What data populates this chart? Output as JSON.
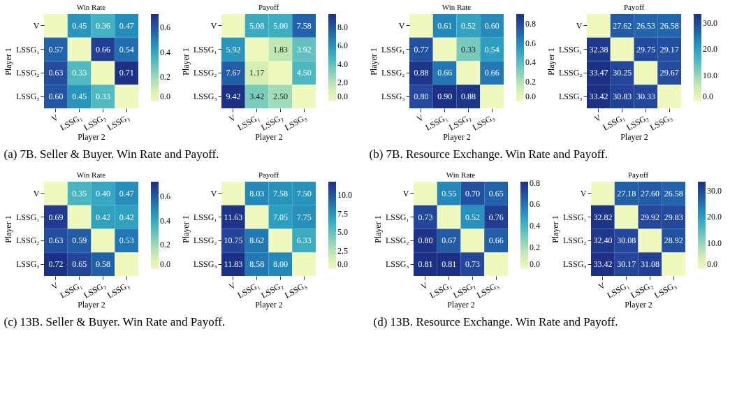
{
  "chart_data": [
    {
      "type": "heatmap",
      "title": "Win Rate",
      "xlabel": "Player 2",
      "ylabel": "Player 1",
      "categories": [
        "V",
        "LSSG₁",
        "LSSG₂",
        "LSSG₃"
      ],
      "y_categories": [
        "V",
        "LSSG₁",
        "LSSG₂",
        "LSSG₃"
      ],
      "cells": [
        [
          0,
          0.45,
          0.36,
          0.47
        ],
        [
          0.57,
          0,
          0.66,
          0.54
        ],
        [
          0.63,
          0.33,
          0,
          0.71
        ],
        [
          0.6,
          0.45,
          0.33,
          0
        ]
      ],
      "cell_labels": [
        [
          null,
          "0.45",
          "0.36",
          "0.47"
        ],
        [
          "0.57",
          null,
          "0.66",
          "0.54"
        ],
        [
          "0.63",
          "0.33",
          null,
          "0.71"
        ],
        [
          "0.60",
          "0.45",
          "0.33",
          null
        ]
      ],
      "clim": [
        0,
        0.71
      ],
      "cticks": [
        {
          "value": 0,
          "label": "0.0"
        },
        0.2,
        0.4,
        0.6
      ],
      "annotations": [
        "(a) 7B. Seller & Buyer. Win Rate and Payoff."
      ]
    },
    {
      "type": "heatmap",
      "title": "Payoff",
      "xlabel": "Player 2",
      "ylabel": "Player 1",
      "categories": [
        "V",
        "LSSG₁",
        "LSSG₂",
        "LSSG₃"
      ],
      "y_categories": [
        "V",
        "LSSG₁",
        "LSSG₂",
        "LSSG₃"
      ],
      "cells": [
        [
          0,
          5.08,
          5.0,
          7.58
        ],
        [
          5.92,
          0,
          1.83,
          3.92
        ],
        [
          7.67,
          1.17,
          0,
          4.5
        ],
        [
          9.42,
          3.42,
          2.5,
          0
        ]
      ],
      "cell_labels": [
        [
          null,
          "5.08",
          "5.00",
          "7.58"
        ],
        [
          "5.92",
          null,
          "1.83",
          "3.92"
        ],
        [
          "7.67",
          "1.17",
          null,
          "4.50"
        ],
        [
          "9.42",
          "3.42",
          "2.50",
          null
        ]
      ],
      "clim": [
        0,
        9.42
      ],
      "cticks": [
        {
          "value": 0,
          "label": "0.0"
        },
        {
          "value": 2,
          "label": "2.0"
        },
        {
          "value": 4,
          "label": "4.0"
        },
        {
          "value": 6,
          "label": "6.0"
        },
        {
          "value": 8,
          "label": "8.0"
        }
      ]
    },
    {
      "type": "heatmap",
      "title": "Win Rate",
      "xlabel": "Player 2",
      "ylabel": "Player 1",
      "categories": [
        "V",
        "LSSG₁",
        "LSSG₂",
        "LSSG₃"
      ],
      "y_categories": [
        "V",
        "LSSG₁",
        "LSSG₂",
        "LSSG₃"
      ],
      "cells": [
        [
          0,
          0.61,
          0.52,
          0.6
        ],
        [
          0.77,
          0,
          0.33,
          0.54
        ],
        [
          0.88,
          0.66,
          0,
          0.66
        ],
        [
          0.8,
          0.9,
          0.88,
          0
        ]
      ],
      "cell_labels": [
        [
          null,
          "0.61",
          "0.52",
          "0.60"
        ],
        [
          "0.77",
          null,
          "0.33",
          "0.54"
        ],
        [
          "0.88",
          "0.66",
          null,
          "0.66"
        ],
        [
          "0.80",
          "0.90",
          "0.88",
          null
        ]
      ],
      "clim": [
        0,
        0.9
      ],
      "cticks": [
        {
          "value": 0,
          "label": "0.0"
        },
        0.2,
        0.4,
        0.6,
        0.8
      ],
      "annotations": [
        "(b) 7B. Resource Exchange. Win Rate and Payoff."
      ]
    },
    {
      "type": "heatmap",
      "title": "Payoff",
      "xlabel": "Player 2",
      "ylabel": "Player 1",
      "categories": [
        "V",
        "LSSG₁",
        "LSSG₂",
        "LSSG₃"
      ],
      "y_categories": [
        "V",
        "LSSG₁",
        "LSSG₂",
        "LSSG₃"
      ],
      "cells": [
        [
          0,
          27.62,
          26.53,
          26.58
        ],
        [
          32.38,
          0,
          29.75,
          29.17
        ],
        [
          33.47,
          30.25,
          0,
          29.67
        ],
        [
          33.42,
          30.83,
          30.33,
          0
        ]
      ],
      "cell_labels": [
        [
          null,
          "27.62",
          "26.53",
          "26.58"
        ],
        [
          "32.38",
          null,
          "29.75",
          "29.17"
        ],
        [
          "33.47",
          "30.25",
          null,
          "29.67"
        ],
        [
          "33.42",
          "30.83",
          "30.33",
          null
        ]
      ],
      "clim": [
        0,
        33.47
      ],
      "cticks": [
        {
          "value": 0,
          "label": "0.0"
        },
        {
          "value": 10,
          "label": "10.0"
        },
        {
          "value": 20,
          "label": "20.0"
        },
        {
          "value": 30,
          "label": "30.0"
        }
      ]
    },
    {
      "type": "heatmap",
      "title": "Win Rate",
      "xlabel": "Player 2",
      "ylabel": "Player 1",
      "categories": [
        "V",
        "LSSG₁",
        "LSSG₂",
        "LSSG₃"
      ],
      "y_categories": [
        "V",
        "LSSG₁",
        "LSSG₂",
        "LSSG₃"
      ],
      "cells": [
        [
          0,
          0.35,
          0.4,
          0.47
        ],
        [
          0.69,
          0,
          0.42,
          0.42
        ],
        [
          0.63,
          0.59,
          0,
          0.53
        ],
        [
          0.72,
          0.65,
          0.58,
          0
        ]
      ],
      "cell_labels": [
        [
          null,
          "0.35",
          "0.40",
          "0.47"
        ],
        [
          "0.69",
          null,
          "0.42",
          "0.42"
        ],
        [
          "0.63",
          "0.59",
          null,
          "0.53"
        ],
        [
          "0.72",
          "0.65",
          "0.58",
          null
        ]
      ],
      "clim": [
        0,
        0.72
      ],
      "cticks": [
        {
          "value": 0,
          "label": "0.0"
        },
        0.2,
        0.4,
        0.6
      ],
      "annotations": [
        "(c) 13B. Seller & Buyer. Win Rate and Payoff."
      ]
    },
    {
      "type": "heatmap",
      "title": "Payoff",
      "xlabel": "Player 2",
      "ylabel": "Player 1",
      "categories": [
        "V",
        "LSSG₁",
        "LSSG₂",
        "LSSG₃"
      ],
      "y_categories": [
        "V",
        "LSSG₁",
        "LSSG₂",
        "LSSG₃"
      ],
      "cells": [
        [
          0,
          8.03,
          7.58,
          7.5
        ],
        [
          11.63,
          0,
          7.05,
          7.75
        ],
        [
          10.75,
          8.62,
          0,
          6.33
        ],
        [
          11.83,
          8.58,
          8.0,
          0
        ]
      ],
      "cell_labels": [
        [
          null,
          "8.03",
          "7.58",
          "7.50"
        ],
        [
          "11.63",
          null,
          "7.05",
          "7.75"
        ],
        [
          "10.75",
          "8.62",
          null,
          "6.33"
        ],
        [
          "11.83",
          "8.58",
          "8.00",
          null
        ]
      ],
      "clim": [
        0,
        11.83
      ],
      "cticks": [
        {
          "value": 0,
          "label": "0.0"
        },
        2.5,
        {
          "value": 5,
          "label": "5.0"
        },
        7.5,
        {
          "value": 10,
          "label": "10.0"
        }
      ]
    },
    {
      "type": "heatmap",
      "title": "Win Rate",
      "xlabel": "Player 2",
      "ylabel": "Player 1",
      "categories": [
        "V",
        "LSSG₁",
        "LSSG₂",
        "LSSG₃"
      ],
      "y_categories": [
        "V",
        "LSSG₁",
        "LSSG₂",
        "LSSG₃"
      ],
      "cells": [
        [
          0,
          0.55,
          0.7,
          0.65
        ],
        [
          0.73,
          0,
          0.52,
          0.76
        ],
        [
          0.8,
          0.67,
          0,
          0.66
        ],
        [
          0.81,
          0.81,
          0.73,
          0
        ]
      ],
      "cell_labels": [
        [
          null,
          "0.55",
          "0.70",
          "0.65"
        ],
        [
          "0.73",
          null,
          "0.52",
          "0.76"
        ],
        [
          "0.80",
          "0.67",
          null,
          "0.66"
        ],
        [
          "0.81",
          "0.81",
          "0.73",
          null
        ]
      ],
      "clim": [
        0,
        0.81
      ],
      "cticks": [
        {
          "value": 0,
          "label": "0.0"
        },
        0.2,
        0.4,
        0.6,
        0.8
      ],
      "annotations": [
        "(d) 13B. Resource Exchange. Win Rate and Payoff."
      ]
    },
    {
      "type": "heatmap",
      "title": "Payoff",
      "xlabel": "Player 2",
      "ylabel": "Player 1",
      "categories": [
        "V",
        "LSSG₁",
        "LSSG₂",
        "LSSG₃"
      ],
      "y_categories": [
        "V",
        "LSSG₁",
        "LSSG₂",
        "LSSG₃"
      ],
      "cells": [
        [
          0,
          27.18,
          27.6,
          26.58
        ],
        [
          32.82,
          0,
          29.92,
          29.83
        ],
        [
          32.4,
          30.08,
          0,
          28.92
        ],
        [
          33.42,
          30.17,
          31.08,
          0
        ]
      ],
      "cell_labels": [
        [
          null,
          "27.18",
          "27.60",
          "26.58"
        ],
        [
          "32.82",
          null,
          "29.92",
          "29.83"
        ],
        [
          "32.40",
          "30.08",
          null,
          "28.92"
        ],
        [
          "33.42",
          "30.17",
          "31.08",
          null
        ]
      ],
      "clim": [
        0,
        33.42
      ],
      "cticks": [
        {
          "value": 0,
          "label": "0.0"
        },
        {
          "value": 10,
          "label": "10.0"
        },
        {
          "value": 20,
          "label": "20.0"
        },
        {
          "value": 30,
          "label": "30.0"
        }
      ]
    }
  ]
}
